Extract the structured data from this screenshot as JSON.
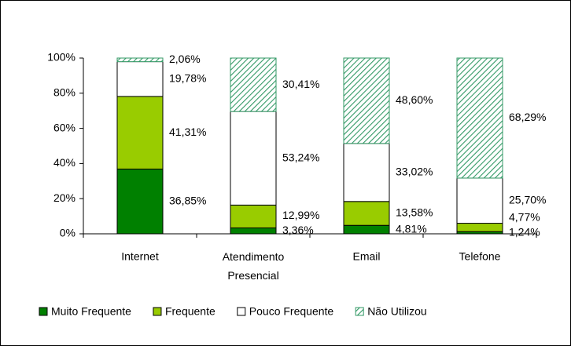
{
  "chart_data": {
    "type": "bar",
    "stacked": true,
    "categories": [
      "Internet",
      "Atendimento Presencial",
      "Email",
      "Telefone"
    ],
    "series": [
      {
        "name": "Muito Frequente",
        "color": "#008000",
        "values": [
          36.85,
          3.36,
          4.81,
          1.24
        ],
        "value_labels": [
          "36,85%",
          "3,36%",
          "4,81%",
          "1,24%"
        ]
      },
      {
        "name": "Frequente",
        "color": "#99cc00",
        "values": [
          41.31,
          12.99,
          13.58,
          4.77
        ],
        "value_labels": [
          "41,31%",
          "12,99%",
          "13,58%",
          "4,77%"
        ]
      },
      {
        "name": "Pouco Frequente",
        "color": "#ffffff",
        "values": [
          19.78,
          53.24,
          33.02,
          25.7
        ],
        "value_labels": [
          "19,78%",
          "53,24%",
          "33,02%",
          "25,70%"
        ]
      },
      {
        "name": "Não Utilizou",
        "color": "#339966",
        "hatch": true,
        "values": [
          2.06,
          30.41,
          48.6,
          68.29
        ],
        "value_labels": [
          "2,06%",
          "30,41%",
          "48,60%",
          "68,29%"
        ]
      }
    ],
    "ylim": [
      0,
      100
    ],
    "yticks": [
      {
        "value": 0,
        "label": "0%"
      },
      {
        "value": 20,
        "label": "20%"
      },
      {
        "value": 40,
        "label": "40%"
      },
      {
        "value": 60,
        "label": "60%"
      },
      {
        "value": 80,
        "label": "80%"
      },
      {
        "value": 100,
        "label": "100%"
      }
    ],
    "legend": "bottom"
  }
}
